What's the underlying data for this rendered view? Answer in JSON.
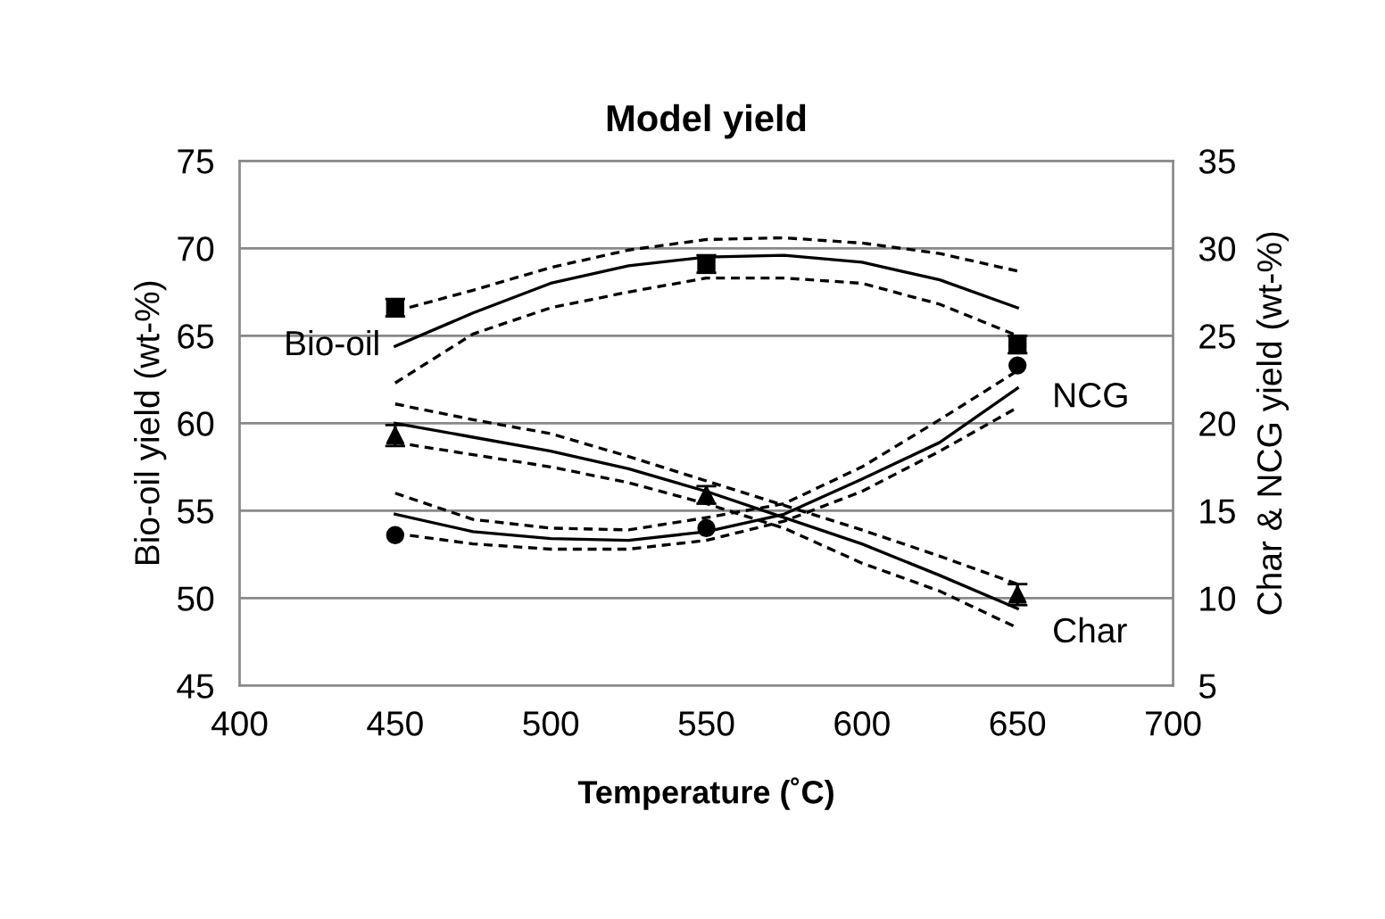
{
  "chart_data": {
    "type": "line",
    "title": "Model yield",
    "xlabel": "Temperature (˚C)",
    "ylabel": "Bio-oil yield (wt-%)",
    "y2label": "Char & NCG yield (wt-%)",
    "xlim": [
      400,
      700
    ],
    "xticks": [
      400,
      450,
      500,
      550,
      600,
      650,
      700
    ],
    "ylim": [
      45,
      75
    ],
    "yticks": [
      45,
      50,
      55,
      60,
      65,
      70,
      75
    ],
    "y2lim": [
      5,
      35
    ],
    "y2ticks": [
      5,
      10,
      15,
      20,
      25,
      30,
      35
    ],
    "grid": "y",
    "series": [
      {
        "name": "Bio-oil",
        "color": "#000000",
        "marker": "none",
        "line_style": "solid",
        "axis": "y",
        "x": [
          450,
          475,
          500,
          525,
          550,
          575,
          600,
          625,
          650
        ],
        "values": [
          64.4,
          66.3,
          68.0,
          69.0,
          69.5,
          69.6,
          69.2,
          68.2,
          66.6
        ]
      },
      {
        "color": "#000000",
        "marker": "none",
        "line_style": "dashed",
        "axis": "y",
        "x": [
          450,
          475,
          500,
          525,
          550,
          575,
          600,
          625,
          650
        ],
        "values": [
          66.4,
          67.6,
          68.9,
          69.9,
          70.5,
          70.6,
          70.3,
          69.7,
          68.7
        ]
      },
      {
        "color": "#000000",
        "marker": "none",
        "line_style": "dashed",
        "axis": "y",
        "x": [
          450,
          475,
          500,
          525,
          550,
          575,
          600,
          625,
          650
        ],
        "values": [
          62.3,
          65.1,
          66.6,
          67.5,
          68.3,
          68.3,
          68.0,
          66.8,
          65.0
        ]
      },
      {
        "type": "scatter",
        "color": "#000000",
        "marker": "square",
        "axis": "y",
        "x": [
          450,
          550,
          650
        ],
        "values": [
          66.6,
          69.1,
          64.5
        ],
        "errors": [
          0.5,
          0.5,
          0.5
        ]
      },
      {
        "name": "Char",
        "color": "#000000",
        "marker": "none",
        "line_style": "solid",
        "axis": "y2",
        "x": [
          450,
          475,
          500,
          525,
          550,
          575,
          600,
          625,
          650
        ],
        "values": [
          20.0,
          19.2,
          18.4,
          17.4,
          16.1,
          14.6,
          13.1,
          11.3,
          9.4
        ]
      },
      {
        "color": "#000000",
        "marker": "none",
        "line_style": "dashed",
        "axis": "y2",
        "x": [
          450,
          475,
          500,
          525,
          550,
          575,
          600,
          625,
          650
        ],
        "values": [
          21.1,
          20.2,
          19.4,
          18.1,
          16.7,
          15.3,
          13.9,
          12.4,
          10.8
        ]
      },
      {
        "color": "#000000",
        "marker": "none",
        "line_style": "dashed",
        "axis": "y2",
        "x": [
          450,
          475,
          500,
          525,
          550,
          575,
          600,
          625,
          650
        ],
        "values": [
          18.9,
          18.2,
          17.5,
          16.6,
          15.4,
          14.0,
          12.0,
          10.4,
          8.3
        ]
      },
      {
        "type": "scatter",
        "color": "#000000",
        "marker": "triangle",
        "axis": "y2",
        "x": [
          450,
          550,
          650
        ],
        "values": [
          19.3,
          15.9,
          10.2
        ],
        "errors": [
          0.6,
          0.5,
          0.6
        ]
      },
      {
        "name": "NCG",
        "color": "#000000",
        "marker": "none",
        "line_style": "solid",
        "axis": "y2",
        "x": [
          450,
          475,
          500,
          525,
          550,
          575,
          600,
          625,
          650
        ],
        "values": [
          14.8,
          13.8,
          13.4,
          13.3,
          13.8,
          14.8,
          16.8,
          18.9,
          22.0
        ]
      },
      {
        "color": "#000000",
        "marker": "none",
        "line_style": "dashed",
        "axis": "y2",
        "x": [
          450,
          475,
          500,
          525,
          550,
          575,
          600,
          625,
          650
        ],
        "values": [
          16.0,
          14.5,
          14.0,
          13.9,
          14.6,
          15.4,
          17.5,
          20.2,
          23.0
        ]
      },
      {
        "color": "#000000",
        "marker": "none",
        "line_style": "dashed",
        "axis": "y2",
        "x": [
          450,
          475,
          500,
          525,
          550,
          575,
          600,
          625,
          650
        ],
        "values": [
          13.7,
          13.1,
          12.8,
          12.8,
          13.3,
          14.4,
          16.1,
          18.4,
          20.9
        ]
      },
      {
        "type": "scatter",
        "color": "#000000",
        "marker": "circle",
        "axis": "y2",
        "x": [
          450,
          550,
          650
        ],
        "values": [
          13.6,
          14.0,
          23.3
        ]
      }
    ]
  }
}
